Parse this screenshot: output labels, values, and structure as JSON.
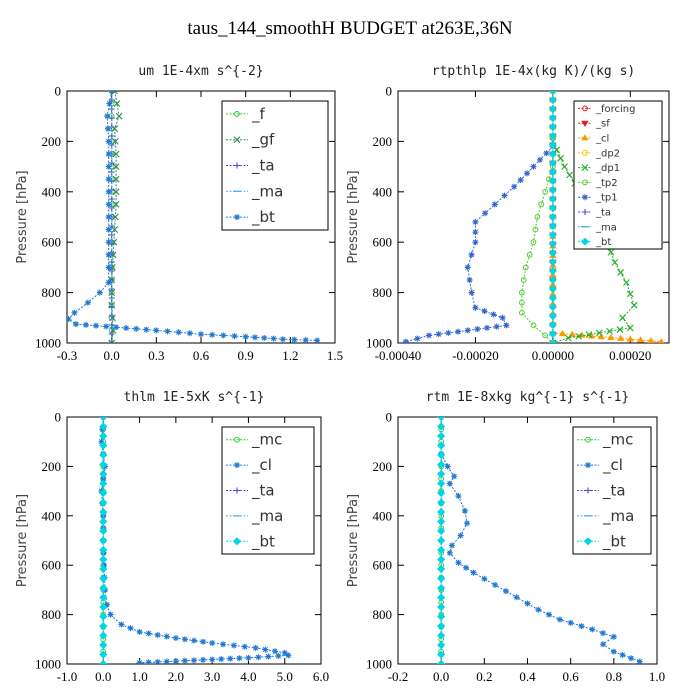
{
  "title": "taus_144_smoothH  BUDGET at263E,36N",
  "chart_data": [
    {
      "type": "line",
      "title": "um  1E-4xm s^{-2}",
      "ylabel": "Pressure [hPa]",
      "xlim": [
        -0.3,
        1.5
      ],
      "ylim": [
        1000,
        0
      ],
      "xticks": [
        "-0.3",
        "0.0",
        "0.3",
        "0.6",
        "0.9",
        "1.2",
        "1.5"
      ],
      "xtick_values": [
        -0.3,
        0.0,
        0.3,
        0.6,
        0.9,
        1.2,
        1.5
      ],
      "yticks": [
        "0",
        "200",
        "400",
        "600",
        "800",
        "1000"
      ],
      "legend_position": "top-right",
      "legend_size": "large",
      "series": [
        {
          "name": "_f",
          "color": "#33cc33",
          "marker": "o",
          "points": [
            [
              0.0,
              0
            ],
            [
              0.0,
              100
            ],
            [
              0.0,
              200
            ],
            [
              0.0,
              300
            ],
            [
              0.0,
              400
            ],
            [
              0.0,
              500
            ],
            [
              0.0,
              600
            ],
            [
              0.0,
              700
            ],
            [
              0.0,
              800
            ],
            [
              0.0,
              900
            ],
            [
              0.0,
              1000
            ]
          ]
        },
        {
          "name": "_gf",
          "color": "#2e8b57",
          "marker": "x",
          "points": [
            [
              0.02,
              0
            ],
            [
              0.05,
              100
            ],
            [
              0.02,
              150
            ],
            [
              0.03,
              250
            ],
            [
              0.03,
              350
            ],
            [
              0.03,
              450
            ],
            [
              0.02,
              550
            ],
            [
              0.01,
              650
            ],
            [
              0.0,
              750
            ],
            [
              0.0,
              850
            ],
            [
              0.01,
              950
            ],
            [
              0.0,
              1000
            ]
          ]
        },
        {
          "name": "_ta",
          "color": "#4b4bd0",
          "marker": "+",
          "points": [
            [
              0.0,
              0
            ],
            [
              0.0,
              500
            ],
            [
              0.0,
              1000
            ]
          ]
        },
        {
          "name": "_ma",
          "color": "#55aaee",
          "marker": "-",
          "points": [
            [
              0.0,
              0
            ],
            [
              0.0,
              500
            ],
            [
              0.0,
              1000
            ]
          ]
        },
        {
          "name": "_bt",
          "color": "#1f77d4",
          "marker": "*",
          "points": [
            [
              0.0,
              0
            ],
            [
              -0.03,
              100
            ],
            [
              -0.02,
              200
            ],
            [
              -0.02,
              300
            ],
            [
              -0.02,
              400
            ],
            [
              -0.02,
              500
            ],
            [
              -0.02,
              600
            ],
            [
              -0.02,
              700
            ],
            [
              -0.02,
              760
            ],
            [
              -0.08,
              800
            ],
            [
              -0.16,
              840
            ],
            [
              -0.25,
              880
            ],
            [
              -0.29,
              905
            ],
            [
              -0.24,
              925
            ],
            [
              0.3,
              950
            ],
            [
              0.6,
              965
            ],
            [
              0.9,
              975
            ],
            [
              1.15,
              985
            ],
            [
              1.38,
              990
            ]
          ]
        }
      ]
    },
    {
      "type": "line",
      "title": "rtpthlp  1E-4x(kg K)/(kg s)",
      "ylabel": "Pressure [hPa]",
      "xlim": [
        -0.0004,
        0.0003
      ],
      "ylim": [
        1000,
        0
      ],
      "xticks": [
        "-0.00040",
        "-0.00020",
        "0.00000",
        "0.00020"
      ],
      "xtick_values": [
        -0.0004,
        -0.0002,
        0.0,
        0.0002
      ],
      "yticks": [
        "0",
        "200",
        "400",
        "600",
        "800",
        "1000"
      ],
      "legend_position": "top-right",
      "legend_size": "small",
      "series": [
        {
          "name": "_forcing",
          "color": "#dd2222",
          "marker": "o",
          "points": [
            [
              0.0,
              0
            ],
            [
              0.0,
              500
            ],
            [
              0.0,
              1000
            ]
          ]
        },
        {
          "name": "_sf",
          "color": "#dd2222",
          "marker": "v",
          "points": [
            [
              0.0,
              0
            ],
            [
              0.0,
              500
            ],
            [
              0.0,
              1000
            ]
          ]
        },
        {
          "name": "_cl",
          "color": "#ff9900",
          "marker": "^",
          "points": [
            [
              0.0,
              0
            ],
            [
              0.0,
              500
            ],
            [
              0.0,
              960
            ],
            [
              0.0002,
              985
            ],
            [
              0.00028,
              995
            ]
          ]
        },
        {
          "name": "_dp2",
          "color": "#ffcc00",
          "marker": "o",
          "points": [
            [
              0.0,
              0
            ],
            [
              0.0,
              500
            ],
            [
              0.0,
              1000
            ]
          ]
        },
        {
          "name": "_dp1",
          "color": "#22aa22",
          "marker": "x",
          "points": [
            [
              0.0,
              200
            ],
            [
              3e-05,
              300
            ],
            [
              7e-05,
              400
            ],
            [
              0.00011,
              500
            ],
            [
              0.00014,
              600
            ],
            [
              0.00016,
              680
            ],
            [
              0.00019,
              760
            ],
            [
              0.00021,
              850
            ],
            [
              0.00018,
              900
            ],
            [
              0.0002,
              940
            ],
            [
              0.00012,
              960
            ],
            [
              4e-05,
              980
            ],
            [
              0.0,
              1000
            ]
          ]
        },
        {
          "name": "_tp2",
          "color": "#55cc33",
          "marker": "o",
          "points": [
            [
              0.0,
              300
            ],
            [
              -2e-05,
              400
            ],
            [
              -4e-05,
              500
            ],
            [
              -5e-05,
              600
            ],
            [
              -7e-05,
              700
            ],
            [
              -8e-05,
              800
            ],
            [
              -8e-05,
              880
            ],
            [
              -5e-05,
              930
            ],
            [
              -2e-05,
              970
            ],
            [
              0.0,
              1000
            ]
          ]
        },
        {
          "name": "_tp1",
          "color": "#3366cc",
          "marker": "*",
          "points": [
            [
              0.0,
              220
            ],
            [
              -5e-05,
              300
            ],
            [
              -0.0001,
              380
            ],
            [
              -0.00015,
              450
            ],
            [
              -0.0002,
              520
            ],
            [
              -0.0002,
              600
            ],
            [
              -0.00022,
              700
            ],
            [
              -0.00021,
              800
            ],
            [
              -0.0002,
              860
            ],
            [
              -0.00013,
              900
            ],
            [
              -0.00012,
              930
            ],
            [
              -0.00032,
              970
            ],
            [
              -0.00038,
              995
            ]
          ]
        },
        {
          "name": "_ta",
          "color": "#4b4bd0",
          "marker": "+",
          "points": [
            [
              0.0,
              0
            ],
            [
              0.0,
              500
            ],
            [
              0.0,
              1000
            ]
          ]
        },
        {
          "name": "_ma",
          "color": "#55aaee",
          "marker": "-",
          "points": [
            [
              0.0,
              0
            ],
            [
              0.0,
              500
            ],
            [
              0.0,
              1000
            ]
          ]
        },
        {
          "name": "_bt",
          "color": "#00d5e5",
          "marker": "D",
          "points": [
            [
              0.0,
              0
            ],
            [
              0.0,
              500
            ],
            [
              0.0,
              1000
            ]
          ]
        }
      ]
    },
    {
      "type": "line",
      "title": "thlm  1E-5xK s^{-1}",
      "ylabel": "Pressure [hPa]",
      "xlim": [
        -1.0,
        6.0
      ],
      "ylim": [
        1000,
        0
      ],
      "xticks": [
        "-1.0",
        "0.0",
        "1.0",
        "2.0",
        "3.0",
        "4.0",
        "5.0",
        "6.0"
      ],
      "xtick_values": [
        -1.0,
        0.0,
        1.0,
        2.0,
        3.0,
        4.0,
        5.0,
        6.0
      ],
      "yticks": [
        "0",
        "200",
        "400",
        "600",
        "800",
        "1000"
      ],
      "legend_position": "top-right",
      "legend_size": "large",
      "series": [
        {
          "name": "_mc",
          "color": "#33cc33",
          "marker": "o",
          "points": [
            [
              0.0,
              0
            ],
            [
              0.0,
              100
            ],
            [
              0.0,
              200
            ],
            [
              0.0,
              300
            ],
            [
              0.0,
              400
            ],
            [
              0.0,
              500
            ],
            [
              0.0,
              600
            ],
            [
              0.0,
              700
            ],
            [
              0.0,
              800
            ],
            [
              0.0,
              900
            ],
            [
              0.0,
              1000
            ]
          ]
        },
        {
          "name": "_cl",
          "color": "#1f77d4",
          "marker": "*",
          "points": [
            [
              0.0,
              0
            ],
            [
              -0.05,
              100
            ],
            [
              0.05,
              200
            ],
            [
              -0.05,
              300
            ],
            [
              0.0,
              400
            ],
            [
              0.0,
              500
            ],
            [
              0.02,
              600
            ],
            [
              0.05,
              700
            ],
            [
              0.1,
              760
            ],
            [
              0.2,
              800
            ],
            [
              0.5,
              840
            ],
            [
              1.0,
              870
            ],
            [
              2.0,
              895
            ],
            [
              3.0,
              915
            ],
            [
              4.2,
              935
            ],
            [
              5.0,
              955
            ],
            [
              5.1,
              965
            ],
            [
              4.0,
              975
            ],
            [
              2.5,
              985
            ],
            [
              1.0,
              995
            ]
          ]
        },
        {
          "name": "_ta",
          "color": "#4b4bd0",
          "marker": "+",
          "points": [
            [
              0.0,
              0
            ],
            [
              0.0,
              500
            ],
            [
              0.0,
              1000
            ]
          ]
        },
        {
          "name": "_ma",
          "color": "#55aaee",
          "marker": "-",
          "points": [
            [
              0.0,
              0
            ],
            [
              0.0,
              500
            ],
            [
              0.0,
              1000
            ]
          ]
        },
        {
          "name": "_bt",
          "color": "#00d5e5",
          "marker": "D",
          "points": [
            [
              0.0,
              0
            ],
            [
              0.0,
              500
            ],
            [
              0.0,
              1000
            ]
          ]
        }
      ]
    },
    {
      "type": "line",
      "title": "rtm  1E-8xkg kg^{-1} s^{-1}",
      "ylabel": "Pressure [hPa]",
      "xlim": [
        -0.2,
        1.0
      ],
      "ylim": [
        1000,
        0
      ],
      "xticks": [
        "-0.2",
        "0.0",
        "0.2",
        "0.4",
        "0.6",
        "0.8",
        "1.0"
      ],
      "xtick_values": [
        -0.2,
        0.0,
        0.2,
        0.4,
        0.6,
        0.8,
        1.0
      ],
      "yticks": [
        "0",
        "200",
        "400",
        "600",
        "800",
        "1000"
      ],
      "legend_position": "top-right",
      "legend_size": "large",
      "series": [
        {
          "name": "_mc",
          "color": "#33cc33",
          "marker": "o",
          "points": [
            [
              0.0,
              0
            ],
            [
              0.0,
              100
            ],
            [
              0.0,
              200
            ],
            [
              0.0,
              300
            ],
            [
              0.0,
              400
            ],
            [
              0.0,
              500
            ],
            [
              0.0,
              600
            ],
            [
              0.0,
              700
            ],
            [
              0.0,
              800
            ],
            [
              0.0,
              900
            ],
            [
              0.0,
              1000
            ]
          ]
        },
        {
          "name": "_cl",
          "color": "#1f77d4",
          "marker": "*",
          "points": [
            [
              0.0,
              150
            ],
            [
              0.03,
              200
            ],
            [
              0.06,
              240
            ],
            [
              0.04,
              270
            ],
            [
              0.08,
              320
            ],
            [
              0.11,
              380
            ],
            [
              0.12,
              430
            ],
            [
              0.09,
              480
            ],
            [
              0.05,
              520
            ],
            [
              0.04,
              550
            ],
            [
              0.08,
              590
            ],
            [
              0.15,
              630
            ],
            [
              0.25,
              680
            ],
            [
              0.35,
              730
            ],
            [
              0.45,
              780
            ],
            [
              0.55,
              820
            ],
            [
              0.7,
              860
            ],
            [
              0.8,
              890
            ],
            [
              0.75,
              920
            ],
            [
              0.8,
              950
            ],
            [
              0.92,
              990
            ]
          ]
        },
        {
          "name": "_ta",
          "color": "#4b4bd0",
          "marker": "+",
          "points": [
            [
              0.0,
              0
            ],
            [
              0.0,
              500
            ],
            [
              0.0,
              1000
            ]
          ]
        },
        {
          "name": "_ma",
          "color": "#55aaee",
          "marker": "-",
          "points": [
            [
              0.0,
              0
            ],
            [
              0.0,
              500
            ],
            [
              0.0,
              1000
            ]
          ]
        },
        {
          "name": "_bt",
          "color": "#00d5e5",
          "marker": "D",
          "points": [
            [
              0.0,
              0
            ],
            [
              0.0,
              500
            ],
            [
              0.0,
              1000
            ]
          ]
        }
      ]
    }
  ]
}
